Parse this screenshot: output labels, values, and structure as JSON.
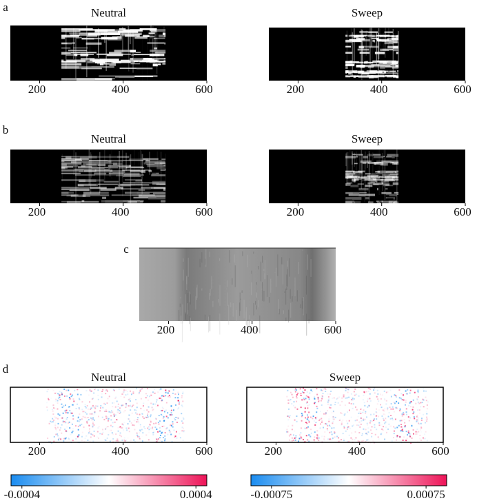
{
  "panel_labels": [
    "a",
    "b",
    "c",
    "d"
  ],
  "chart_data": [
    {
      "type": "heatmap",
      "panel": "a",
      "title": "Neutral",
      "colormap": "gray",
      "xlim": [
        130,
        600
      ],
      "xticks": [
        200,
        400,
        600
      ]
    },
    {
      "type": "heatmap",
      "panel": "a",
      "title": "Sweep",
      "colormap": "gray",
      "xlim": [
        130,
        600
      ],
      "xticks": [
        200,
        400,
        600
      ]
    },
    {
      "type": "heatmap",
      "panel": "b",
      "title": "Neutral",
      "colormap": "gray",
      "xlim": [
        130,
        600
      ],
      "xticks": [
        200,
        400,
        600
      ]
    },
    {
      "type": "heatmap",
      "panel": "b",
      "title": "Sweep",
      "colormap": "gray",
      "xlim": [
        130,
        600
      ],
      "xticks": [
        200,
        400,
        600
      ]
    },
    {
      "type": "heatmap",
      "panel": "c",
      "colormap": "gray",
      "xlim": [
        130,
        600
      ],
      "xticks": [
        200,
        400,
        600
      ]
    },
    {
      "type": "heatmap",
      "panel": "d",
      "title": "Neutral",
      "colormap": "bwr",
      "xlim": [
        130,
        600
      ],
      "xticks": [
        200,
        400,
        600
      ]
    },
    {
      "type": "heatmap",
      "panel": "d",
      "title": "Sweep",
      "colormap": "bwr",
      "xlim": [
        130,
        600
      ],
      "xticks": [
        200,
        400,
        600
      ]
    },
    {
      "type": "colorbar",
      "colors": [
        "#1a8cf0",
        "#ffffff",
        "#ee1458"
      ],
      "clim": [
        -0.00045,
        0.00045
      ],
      "ticks": [
        -0.0004,
        0.0004
      ]
    },
    {
      "type": "colorbar",
      "colors": [
        "#1a8cf0",
        "#ffffff",
        "#ee1458"
      ],
      "clim": [
        -0.00095,
        0.00095
      ],
      "ticks": [
        -0.00075,
        0.00075
      ]
    }
  ]
}
